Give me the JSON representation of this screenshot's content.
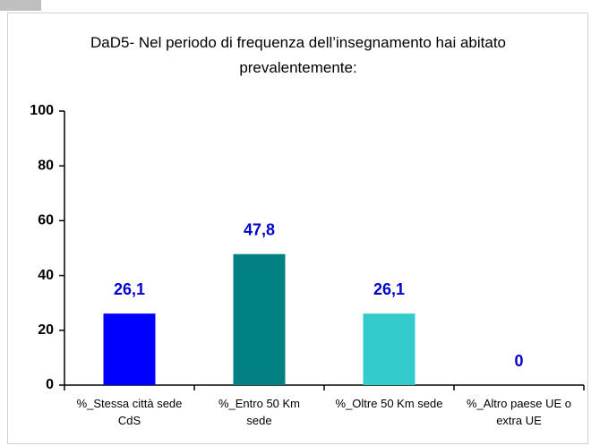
{
  "chart_data": {
    "type": "bar",
    "title": "DaD5- Nel periodo di frequenza dell’insegnamento hai abitato prevalentemente:",
    "categories": [
      "%_Stessa città sede CdS",
      "%_Entro 50 Km sede",
      "%_Oltre 50 Km sede",
      "%_Altro paese UE o extra UE"
    ],
    "values": [
      26.1,
      47.8,
      26.1,
      0
    ],
    "value_labels": [
      "26,1",
      "47,8",
      "26,1",
      "0"
    ],
    "colors": [
      "#0000ff",
      "#008080",
      "#33cccc",
      "#99ccff"
    ],
    "value_label_color": "#0000cc",
    "ylim": [
      0,
      100
    ],
    "yticks": [
      0,
      20,
      40,
      60,
      80,
      100
    ],
    "grid": false
  }
}
